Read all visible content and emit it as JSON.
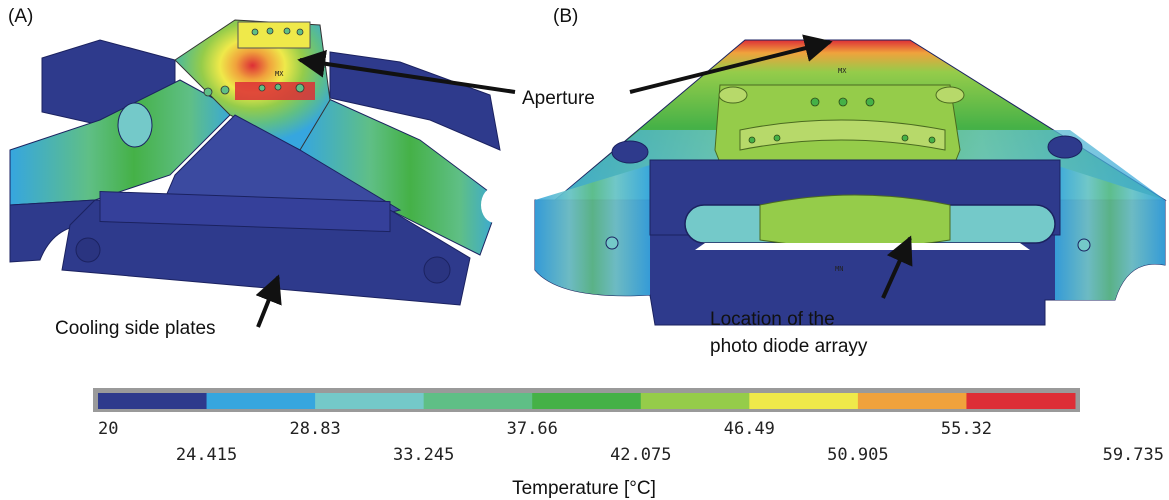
{
  "panels": {
    "a": {
      "label": "(A)"
    },
    "b": {
      "label": "(B)"
    }
  },
  "annotations": {
    "aperture": "Aperture",
    "cooling": "Cooling side plates",
    "location_line1": "Location of the",
    "location_line2": "photo diode arrayy"
  },
  "markers": {
    "mx": "MX",
    "mn": "MN"
  },
  "colorbar": {
    "title": "Temperature [°C]",
    "colors": [
      "#2e3a8c",
      "#36a6df",
      "#74c9c9",
      "#5fbf86",
      "#45b147",
      "#95cc4a",
      "#efe94a",
      "#f0a23c",
      "#dd2e36"
    ],
    "ticks_upper": [
      "20",
      "28.83",
      "37.66",
      "46.49",
      "55.32"
    ],
    "ticks_lower": [
      "24.415",
      "33.245",
      "42.075",
      "50.905",
      "59.735"
    ]
  }
}
